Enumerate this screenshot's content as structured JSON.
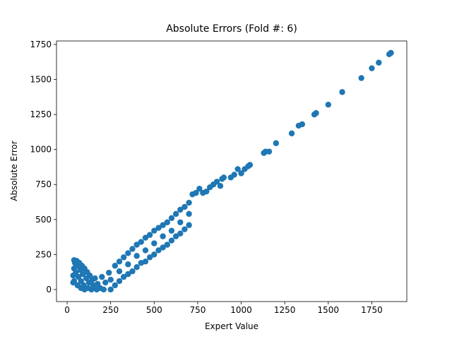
{
  "chart_data": {
    "type": "scatter",
    "title": "Absolute Errors (Fold #: 6)",
    "x_label": "Expert Value",
    "y_label": "Absolute Error",
    "color": "#1f77b4",
    "xlim": [
      -61,
      1951
    ],
    "ylim": [
      -86,
      1775
    ],
    "xticks": [
      0,
      250,
      500,
      750,
      1000,
      1250,
      1500,
      1750
    ],
    "yticks": [
      0,
      250,
      500,
      750,
      1000,
      1250,
      1500,
      1750
    ],
    "x": [
      35,
      35,
      40,
      40,
      40,
      45,
      50,
      55,
      60,
      60,
      65,
      70,
      75,
      80,
      80,
      85,
      90,
      95,
      100,
      100,
      110,
      115,
      120,
      125,
      130,
      140,
      145,
      150,
      160,
      170,
      175,
      190,
      200,
      210,
      220,
      240,
      250,
      250,
      275,
      275,
      300,
      300,
      300,
      325,
      325,
      350,
      350,
      350,
      375,
      375,
      400,
      400,
      400,
      425,
      425,
      450,
      450,
      450,
      475,
      475,
      500,
      500,
      500,
      525,
      525,
      550,
      550,
      550,
      575,
      575,
      600,
      600,
      600,
      625,
      625,
      650,
      650,
      650,
      675,
      675,
      700,
      700,
      700,
      720,
      740,
      760,
      780,
      800,
      820,
      840,
      860,
      880,
      890,
      900,
      940,
      960,
      980,
      1000,
      1020,
      1040,
      1050,
      1130,
      1140,
      1160,
      1200,
      1290,
      1330,
      1350,
      1420,
      1430,
      1500,
      1580,
      1690,
      1750,
      1790,
      1850,
      1860
    ],
    "values": [
      100,
      50,
      210,
      150,
      60,
      190,
      120,
      205,
      30,
      170,
      90,
      190,
      140,
      60,
      10,
      170,
      110,
      30,
      150,
      0,
      80,
      125,
      10,
      50,
      100,
      0,
      70,
      30,
      80,
      0,
      40,
      10,
      90,
      0,
      50,
      120,
      0,
      70,
      30,
      170,
      60,
      200,
      130,
      90,
      230,
      110,
      260,
      180,
      130,
      290,
      160,
      320,
      240,
      190,
      340,
      200,
      370,
      280,
      230,
      390,
      250,
      420,
      330,
      280,
      440,
      300,
      460,
      380,
      320,
      480,
      350,
      510,
      420,
      380,
      540,
      400,
      570,
      480,
      430,
      590,
      460,
      620,
      540,
      680,
      690,
      720,
      690,
      700,
      730,
      750,
      770,
      740,
      790,
      800,
      800,
      820,
      860,
      830,
      860,
      880,
      890,
      975,
      985,
      985,
      1045,
      1115,
      1170,
      1180,
      1250,
      1260,
      1320,
      1410,
      1510,
      1580,
      1620,
      1680,
      1690
    ]
  }
}
